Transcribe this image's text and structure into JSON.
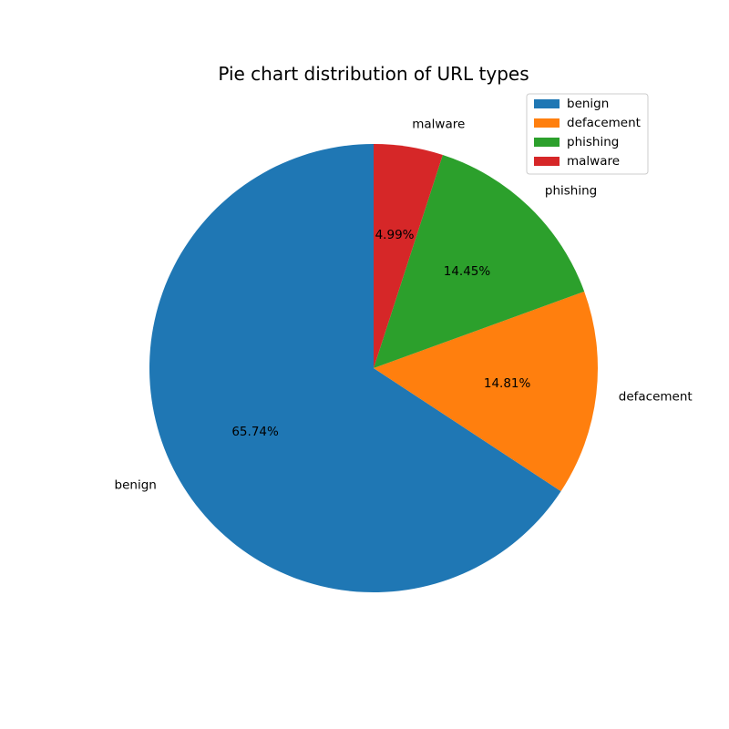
{
  "chart_data": {
    "type": "pie",
    "title": "Pie chart distribution of URL types",
    "slices": [
      {
        "label": "benign",
        "value": 65.74,
        "display": "65.74%",
        "color": "#1f77b4"
      },
      {
        "label": "defacement",
        "value": 14.81,
        "display": "14.81%",
        "color": "#ff7f0e"
      },
      {
        "label": "phishing",
        "value": 14.45,
        "display": "14.45%",
        "color": "#2ca02c"
      },
      {
        "label": "malware",
        "value": 4.99,
        "display": "4.99%",
        "color": "#d62728"
      }
    ],
    "start_angle_deg": 90,
    "direction": "counterclockwise",
    "legend": {
      "position": "upper-right",
      "entries": [
        "benign",
        "defacement",
        "phishing",
        "malware"
      ]
    }
  }
}
